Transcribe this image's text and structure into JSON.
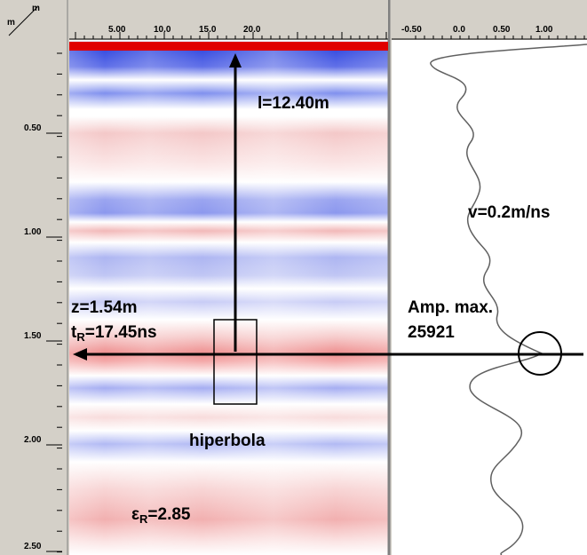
{
  "left_axis": {
    "unit_top": "m",
    "unit_bottom": "m",
    "ticks": [
      "0.50",
      "1.00",
      "1.50",
      "2.00",
      "2.50"
    ]
  },
  "radargram": {
    "ticks": [
      "5.00",
      "10.0",
      "15.0",
      "20.0"
    ]
  },
  "trace": {
    "ticks": [
      "-0.50",
      "0.0",
      "0.50",
      "1.00"
    ]
  },
  "annotations": {
    "distance": "l=12.40m",
    "velocity": "v=0.2m/ns",
    "depth": "z=1.54m",
    "time_symbol": "t",
    "time_subscript": "R",
    "time_value": "=17.45ns",
    "amp_label": "Amp. max.",
    "amp_value": "25921",
    "hyperbola": "hiperbola",
    "permittivity_symbol": "ε",
    "permittivity_subscript": "R",
    "permittivity_value": "=2.85"
  }
}
